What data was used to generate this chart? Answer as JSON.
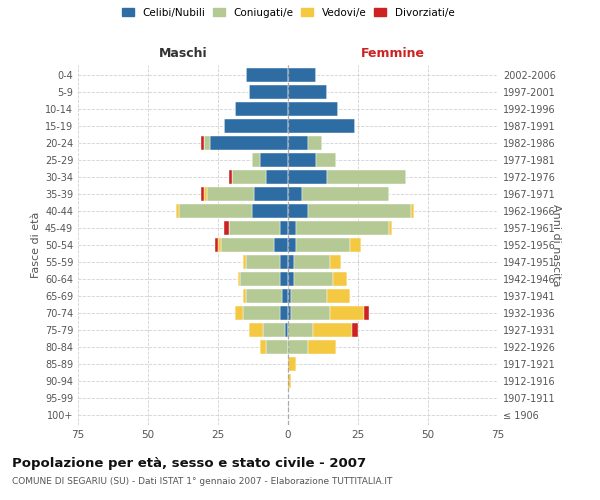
{
  "age_groups": [
    "100+",
    "95-99",
    "90-94",
    "85-89",
    "80-84",
    "75-79",
    "70-74",
    "65-69",
    "60-64",
    "55-59",
    "50-54",
    "45-49",
    "40-44",
    "35-39",
    "30-34",
    "25-29",
    "20-24",
    "15-19",
    "10-14",
    "5-9",
    "0-4"
  ],
  "birth_years": [
    "≤ 1906",
    "1907-1911",
    "1912-1916",
    "1917-1921",
    "1922-1926",
    "1927-1931",
    "1932-1936",
    "1937-1941",
    "1942-1946",
    "1947-1951",
    "1952-1956",
    "1957-1961",
    "1962-1966",
    "1967-1971",
    "1972-1976",
    "1977-1981",
    "1982-1986",
    "1987-1991",
    "1992-1996",
    "1997-2001",
    "2002-2006"
  ],
  "maschi": {
    "celibi": [
      0,
      0,
      0,
      0,
      0,
      1,
      3,
      2,
      3,
      3,
      5,
      3,
      13,
      12,
      8,
      10,
      28,
      23,
      19,
      14,
      15
    ],
    "coniugati": [
      0,
      0,
      0,
      0,
      8,
      8,
      13,
      13,
      14,
      12,
      19,
      18,
      26,
      17,
      12,
      3,
      2,
      0,
      0,
      0,
      0
    ],
    "vedovi": [
      0,
      0,
      0,
      0,
      2,
      5,
      3,
      1,
      1,
      1,
      1,
      0,
      1,
      1,
      0,
      0,
      0,
      0,
      0,
      0,
      0
    ],
    "divorziati": [
      0,
      0,
      0,
      0,
      0,
      0,
      0,
      0,
      0,
      0,
      1,
      2,
      0,
      1,
      1,
      0,
      1,
      0,
      0,
      0,
      0
    ]
  },
  "femmine": {
    "nubili": [
      0,
      0,
      0,
      0,
      0,
      0,
      1,
      1,
      2,
      2,
      3,
      3,
      7,
      5,
      14,
      10,
      7,
      24,
      18,
      14,
      10
    ],
    "coniugate": [
      0,
      0,
      0,
      0,
      7,
      9,
      14,
      13,
      14,
      13,
      19,
      33,
      37,
      31,
      28,
      7,
      5,
      0,
      0,
      0,
      0
    ],
    "vedove": [
      0,
      0,
      1,
      3,
      10,
      14,
      12,
      8,
      5,
      4,
      4,
      1,
      1,
      0,
      0,
      0,
      0,
      0,
      0,
      0,
      0
    ],
    "divorziate": [
      0,
      0,
      0,
      0,
      0,
      2,
      2,
      0,
      0,
      0,
      0,
      0,
      0,
      0,
      0,
      0,
      0,
      0,
      0,
      0,
      0
    ]
  },
  "colors": {
    "celibi": "#2E6DA4",
    "coniugati": "#B5C994",
    "vedovi": "#F5C842",
    "divorziati": "#CC2222"
  },
  "legend_labels": [
    "Celibi/Nubili",
    "Coniugati/e",
    "Vedovi/e",
    "Divorziati/e"
  ],
  "xlabel_left": "Maschi",
  "xlabel_right": "Femmine",
  "ylabel_left": "Fasce di età",
  "ylabel_right": "Anni di nascita",
  "title": "Popolazione per età, sesso e stato civile - 2007",
  "subtitle": "COMUNE DI SEGARIU (SU) - Dati ISTAT 1° gennaio 2007 - Elaborazione TUTTITALIA.IT",
  "xlim": 75,
  "bg_color": "#ffffff",
  "grid_color": "#cccccc",
  "bar_height": 0.85
}
